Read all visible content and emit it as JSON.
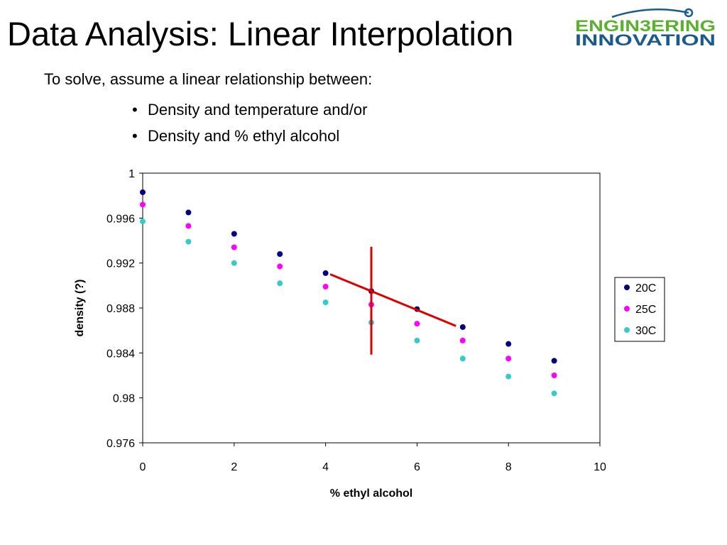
{
  "slide": {
    "title": "Data Analysis: Linear Interpolation",
    "intro": "To solve, assume a linear relationship between:",
    "bullets": [
      "Density and temperature and/or",
      "Density and % ethyl alcohol"
    ],
    "bullet_glyph": "•"
  },
  "logo": {
    "line1": "ENGIN3ERING",
    "line2": "INNOVATION",
    "green": "#5bb030",
    "blue": "#1a5b8c",
    "icon": "orbit-arc-icon"
  },
  "chart_data": {
    "type": "scatter",
    "title": "",
    "xlabel": "% ethyl alcohol",
    "ylabel": "density (?)",
    "xlim": [
      0,
      10
    ],
    "ylim": [
      0.976,
      1
    ],
    "x_ticks": [
      "0",
      "2",
      "4",
      "6",
      "8",
      "10"
    ],
    "y_ticks": [
      "0.976",
      "0.98",
      "0.984",
      "0.988",
      "0.992",
      "0.996",
      "1"
    ],
    "grid": false,
    "legend_position": "right",
    "series": [
      {
        "name": "20C",
        "color": "#000080",
        "x": [
          0,
          1,
          2,
          3,
          4,
          5,
          6,
          7,
          8,
          9
        ],
        "y": [
          0.9983,
          0.9965,
          0.9946,
          0.9928,
          0.9911,
          0.9895,
          0.9879,
          0.9863,
          0.9848,
          0.9833
        ]
      },
      {
        "name": "25C",
        "color": "#ff00ff",
        "x": [
          0,
          1,
          2,
          3,
          4,
          5,
          6,
          7,
          8,
          9
        ],
        "y": [
          0.9972,
          0.9953,
          0.9934,
          0.9917,
          0.9899,
          0.9883,
          0.9866,
          0.9851,
          0.9835,
          0.982
        ]
      },
      {
        "name": "30C",
        "color": "#33cccc",
        "x": [
          0,
          1,
          2,
          3,
          4,
          5,
          6,
          7,
          8,
          9
        ],
        "y": [
          0.9957,
          0.9939,
          0.992,
          0.9902,
          0.9885,
          0.9867,
          0.9851,
          0.9835,
          0.9819,
          0.9804
        ]
      }
    ],
    "annotations": [
      {
        "type": "line",
        "color": "#dd0000",
        "x": [
          4.1,
          6.85
        ],
        "y": [
          0.991,
          0.9864
        ]
      },
      {
        "type": "line",
        "color": "#dd0000",
        "x": [
          5,
          5
        ],
        "y": [
          0.99345,
          0.98385
        ]
      }
    ]
  }
}
